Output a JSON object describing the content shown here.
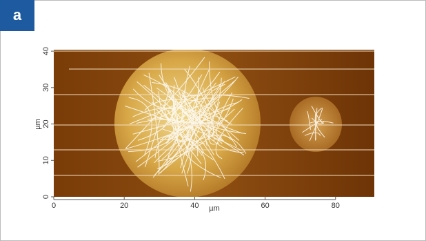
{
  "chart_data": {
    "type": "image",
    "panel_label": "a",
    "xlabel": "µm",
    "ylabel": "µm",
    "xlim": [
      0,
      91
    ],
    "xticks": [
      0,
      20,
      40,
      60,
      80
    ],
    "ylim": [
      0,
      40.4
    ],
    "yticks": [
      0,
      10,
      20,
      30,
      40
    ]
  }
}
